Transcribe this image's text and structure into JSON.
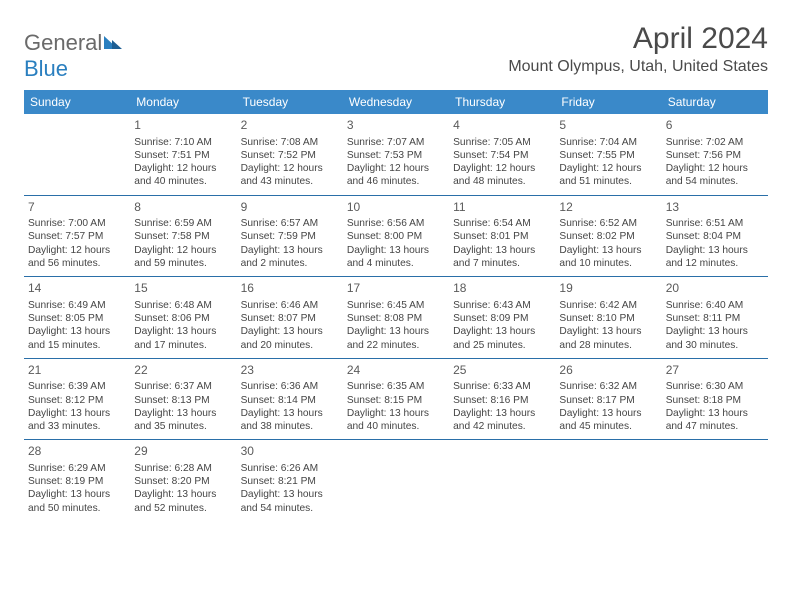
{
  "brand": {
    "general": "General",
    "blue": "Blue"
  },
  "title": "April 2024",
  "location": "Mount Olympus, Utah, United States",
  "colors": {
    "header_bg": "#3a89c9",
    "header_text": "#ffffff",
    "row_border": "#2a6fa8",
    "text": "#454545",
    "logo_gray": "#6a6a6a",
    "logo_blue": "#2a7fbf",
    "background": "#ffffff"
  },
  "dow": [
    "Sunday",
    "Monday",
    "Tuesday",
    "Wednesday",
    "Thursday",
    "Friday",
    "Saturday"
  ],
  "weeks": [
    [
      {
        "n": "",
        "l1": "",
        "l2": "",
        "l3": "",
        "l4": ""
      },
      {
        "n": "1",
        "l1": "Sunrise: 7:10 AM",
        "l2": "Sunset: 7:51 PM",
        "l3": "Daylight: 12 hours",
        "l4": "and 40 minutes."
      },
      {
        "n": "2",
        "l1": "Sunrise: 7:08 AM",
        "l2": "Sunset: 7:52 PM",
        "l3": "Daylight: 12 hours",
        "l4": "and 43 minutes."
      },
      {
        "n": "3",
        "l1": "Sunrise: 7:07 AM",
        "l2": "Sunset: 7:53 PM",
        "l3": "Daylight: 12 hours",
        "l4": "and 46 minutes."
      },
      {
        "n": "4",
        "l1": "Sunrise: 7:05 AM",
        "l2": "Sunset: 7:54 PM",
        "l3": "Daylight: 12 hours",
        "l4": "and 48 minutes."
      },
      {
        "n": "5",
        "l1": "Sunrise: 7:04 AM",
        "l2": "Sunset: 7:55 PM",
        "l3": "Daylight: 12 hours",
        "l4": "and 51 minutes."
      },
      {
        "n": "6",
        "l1": "Sunrise: 7:02 AM",
        "l2": "Sunset: 7:56 PM",
        "l3": "Daylight: 12 hours",
        "l4": "and 54 minutes."
      }
    ],
    [
      {
        "n": "7",
        "l1": "Sunrise: 7:00 AM",
        "l2": "Sunset: 7:57 PM",
        "l3": "Daylight: 12 hours",
        "l4": "and 56 minutes."
      },
      {
        "n": "8",
        "l1": "Sunrise: 6:59 AM",
        "l2": "Sunset: 7:58 PM",
        "l3": "Daylight: 12 hours",
        "l4": "and 59 minutes."
      },
      {
        "n": "9",
        "l1": "Sunrise: 6:57 AM",
        "l2": "Sunset: 7:59 PM",
        "l3": "Daylight: 13 hours",
        "l4": "and 2 minutes."
      },
      {
        "n": "10",
        "l1": "Sunrise: 6:56 AM",
        "l2": "Sunset: 8:00 PM",
        "l3": "Daylight: 13 hours",
        "l4": "and 4 minutes."
      },
      {
        "n": "11",
        "l1": "Sunrise: 6:54 AM",
        "l2": "Sunset: 8:01 PM",
        "l3": "Daylight: 13 hours",
        "l4": "and 7 minutes."
      },
      {
        "n": "12",
        "l1": "Sunrise: 6:52 AM",
        "l2": "Sunset: 8:02 PM",
        "l3": "Daylight: 13 hours",
        "l4": "and 10 minutes."
      },
      {
        "n": "13",
        "l1": "Sunrise: 6:51 AM",
        "l2": "Sunset: 8:04 PM",
        "l3": "Daylight: 13 hours",
        "l4": "and 12 minutes."
      }
    ],
    [
      {
        "n": "14",
        "l1": "Sunrise: 6:49 AM",
        "l2": "Sunset: 8:05 PM",
        "l3": "Daylight: 13 hours",
        "l4": "and 15 minutes."
      },
      {
        "n": "15",
        "l1": "Sunrise: 6:48 AM",
        "l2": "Sunset: 8:06 PM",
        "l3": "Daylight: 13 hours",
        "l4": "and 17 minutes."
      },
      {
        "n": "16",
        "l1": "Sunrise: 6:46 AM",
        "l2": "Sunset: 8:07 PM",
        "l3": "Daylight: 13 hours",
        "l4": "and 20 minutes."
      },
      {
        "n": "17",
        "l1": "Sunrise: 6:45 AM",
        "l2": "Sunset: 8:08 PM",
        "l3": "Daylight: 13 hours",
        "l4": "and 22 minutes."
      },
      {
        "n": "18",
        "l1": "Sunrise: 6:43 AM",
        "l2": "Sunset: 8:09 PM",
        "l3": "Daylight: 13 hours",
        "l4": "and 25 minutes."
      },
      {
        "n": "19",
        "l1": "Sunrise: 6:42 AM",
        "l2": "Sunset: 8:10 PM",
        "l3": "Daylight: 13 hours",
        "l4": "and 28 minutes."
      },
      {
        "n": "20",
        "l1": "Sunrise: 6:40 AM",
        "l2": "Sunset: 8:11 PM",
        "l3": "Daylight: 13 hours",
        "l4": "and 30 minutes."
      }
    ],
    [
      {
        "n": "21",
        "l1": "Sunrise: 6:39 AM",
        "l2": "Sunset: 8:12 PM",
        "l3": "Daylight: 13 hours",
        "l4": "and 33 minutes."
      },
      {
        "n": "22",
        "l1": "Sunrise: 6:37 AM",
        "l2": "Sunset: 8:13 PM",
        "l3": "Daylight: 13 hours",
        "l4": "and 35 minutes."
      },
      {
        "n": "23",
        "l1": "Sunrise: 6:36 AM",
        "l2": "Sunset: 8:14 PM",
        "l3": "Daylight: 13 hours",
        "l4": "and 38 minutes."
      },
      {
        "n": "24",
        "l1": "Sunrise: 6:35 AM",
        "l2": "Sunset: 8:15 PM",
        "l3": "Daylight: 13 hours",
        "l4": "and 40 minutes."
      },
      {
        "n": "25",
        "l1": "Sunrise: 6:33 AM",
        "l2": "Sunset: 8:16 PM",
        "l3": "Daylight: 13 hours",
        "l4": "and 42 minutes."
      },
      {
        "n": "26",
        "l1": "Sunrise: 6:32 AM",
        "l2": "Sunset: 8:17 PM",
        "l3": "Daylight: 13 hours",
        "l4": "and 45 minutes."
      },
      {
        "n": "27",
        "l1": "Sunrise: 6:30 AM",
        "l2": "Sunset: 8:18 PM",
        "l3": "Daylight: 13 hours",
        "l4": "and 47 minutes."
      }
    ],
    [
      {
        "n": "28",
        "l1": "Sunrise: 6:29 AM",
        "l2": "Sunset: 8:19 PM",
        "l3": "Daylight: 13 hours",
        "l4": "and 50 minutes."
      },
      {
        "n": "29",
        "l1": "Sunrise: 6:28 AM",
        "l2": "Sunset: 8:20 PM",
        "l3": "Daylight: 13 hours",
        "l4": "and 52 minutes."
      },
      {
        "n": "30",
        "l1": "Sunrise: 6:26 AM",
        "l2": "Sunset: 8:21 PM",
        "l3": "Daylight: 13 hours",
        "l4": "and 54 minutes."
      },
      {
        "n": "",
        "l1": "",
        "l2": "",
        "l3": "",
        "l4": ""
      },
      {
        "n": "",
        "l1": "",
        "l2": "",
        "l3": "",
        "l4": ""
      },
      {
        "n": "",
        "l1": "",
        "l2": "",
        "l3": "",
        "l4": ""
      },
      {
        "n": "",
        "l1": "",
        "l2": "",
        "l3": "",
        "l4": ""
      }
    ]
  ]
}
